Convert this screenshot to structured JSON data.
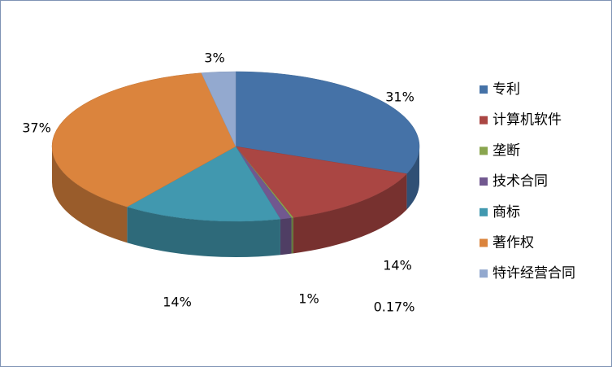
{
  "chart_data": {
    "type": "pie3d",
    "categories": [
      "专利",
      "计算机软件",
      "垄断",
      "技术合同",
      "商标",
      "著作权",
      "特许经营合同"
    ],
    "values": [
      31,
      14,
      0.17,
      1,
      14,
      37,
      3
    ],
    "value_labels": [
      "31%",
      "14%",
      "0.17%",
      "1%",
      "14%",
      "37%",
      "3%"
    ],
    "colors": [
      "#4572a7",
      "#aa4643",
      "#89a54e",
      "#71588f",
      "#4198af",
      "#db843d",
      "#93a9cf"
    ],
    "legend": "right"
  }
}
